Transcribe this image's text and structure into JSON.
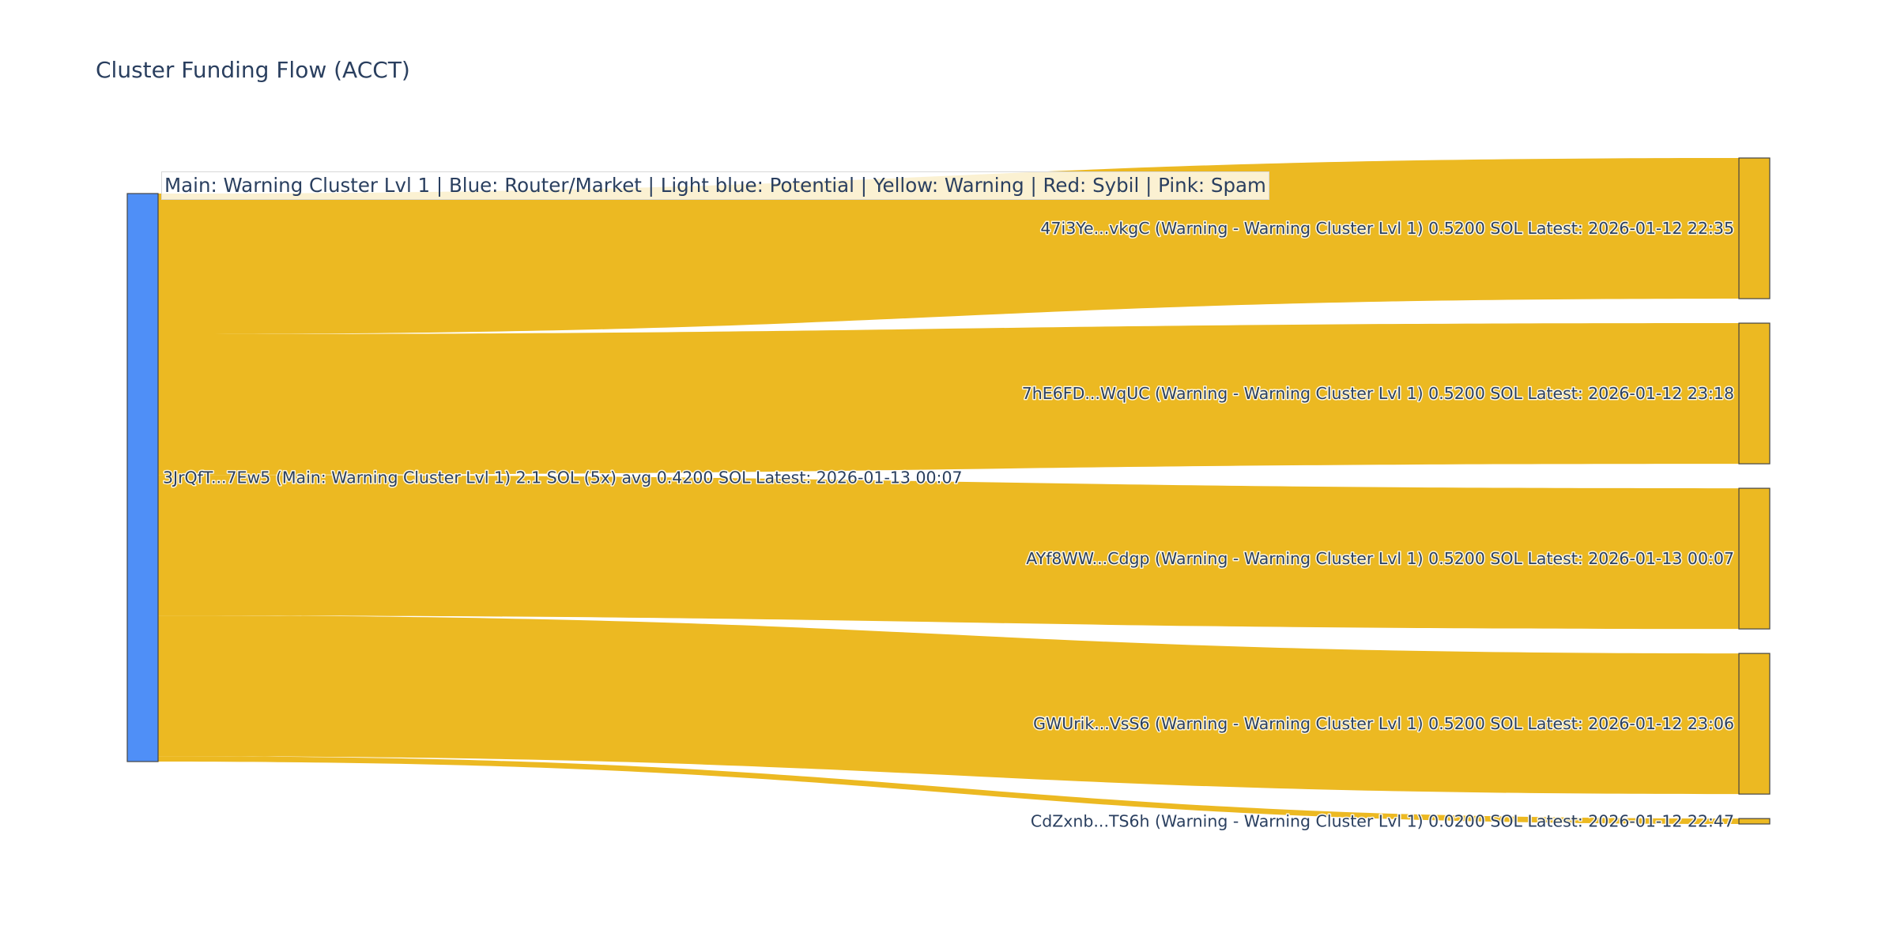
{
  "title": "Cluster Funding Flow (ACCT)",
  "legend_annotation": "Main: Warning Cluster Lvl 1  |  Blue: Router/Market | Light blue: Potential | Yellow: Warning | Red: Sybil | Pink: Spam",
  "chart_data": {
    "type": "sankey",
    "title": "Cluster Funding Flow (ACCT)",
    "colors": {
      "main_node": "#4f8ff7",
      "warning": "#ecb922",
      "node_border": "#444444",
      "text": "#2a3f5f"
    },
    "nodes": [
      {
        "id": "source",
        "label": "3JrQfT...7Ew5 (Main: Warning Cluster Lvl 1) 2.1 SOL (5x) avg 0.4200 SOL Latest: 2026-01-13 00:07",
        "color": "#4f8ff7",
        "value": 2.1
      },
      {
        "id": "t1",
        "label": "47i3Ye...vkgC (Warning - Warning Cluster Lvl 1) 0.5200 SOL Latest: 2026-01-12 22:35",
        "color": "#ecb922",
        "value": 0.52
      },
      {
        "id": "t2",
        "label": "7hE6FD...WqUC (Warning - Warning Cluster Lvl 1) 0.5200 SOL Latest: 2026-01-12 23:18",
        "color": "#ecb922",
        "value": 0.52
      },
      {
        "id": "t3",
        "label": "AYf8WW...Cdgp (Warning - Warning Cluster Lvl 1) 0.5200 SOL Latest: 2026-01-13 00:07",
        "color": "#ecb922",
        "value": 0.52
      },
      {
        "id": "t4",
        "label": "GWUrik...VsS6 (Warning - Warning Cluster Lvl 1) 0.5200 SOL Latest: 2026-01-12 23:06",
        "color": "#ecb922",
        "value": 0.52
      },
      {
        "id": "t5",
        "label": "CdZxnb...TS6h (Warning - Warning Cluster Lvl 1) 0.0200 SOL Latest: 2026-01-12 22:47",
        "color": "#ecb922",
        "value": 0.02
      }
    ],
    "links": [
      {
        "source": "source",
        "target": "t1",
        "value": 0.52
      },
      {
        "source": "source",
        "target": "t2",
        "value": 0.52
      },
      {
        "source": "source",
        "target": "t3",
        "value": 0.52
      },
      {
        "source": "source",
        "target": "t4",
        "value": 0.52
      },
      {
        "source": "source",
        "target": "t5",
        "value": 0.02
      }
    ]
  }
}
